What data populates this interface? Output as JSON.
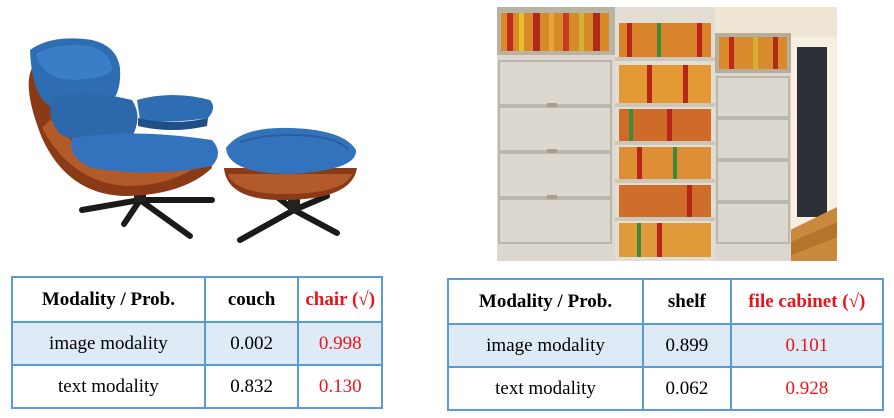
{
  "left": {
    "header": {
      "modality": "Modality / Prob.",
      "class_a": "couch",
      "class_b": "chair (√)"
    },
    "rows": [
      {
        "modality": "image modality",
        "a": "0.002",
        "b": "0.998"
      },
      {
        "modality": "text modality",
        "a": "0.832",
        "b": "0.130"
      }
    ]
  },
  "right": {
    "header": {
      "modality": "Modality / Prob.",
      "class_a": "shelf",
      "class_b": "file cabinet (√)"
    },
    "rows": [
      {
        "modality": "image modality",
        "a": "0.899",
        "b": "0.101"
      },
      {
        "modality": "text modality",
        "a": "0.062",
        "b": "0.928"
      }
    ]
  },
  "colors": {
    "border": "#5b9bd5",
    "shaded_row": "#deebf7",
    "correct_label": "#e8141a"
  }
}
